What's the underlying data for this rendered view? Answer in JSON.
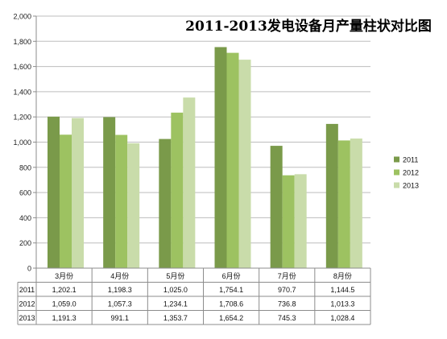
{
  "chart_data": {
    "type": "bar",
    "title": "2011-2013发电设备月产量柱状对比图",
    "categories": [
      "3月份",
      "4月份",
      "5月份",
      "6月份",
      "7月份",
      "8月份"
    ],
    "series": [
      {
        "name": "2011",
        "color": "#7a9a4a",
        "values": [
          1202.1,
          1198.3,
          1025.0,
          1754.1,
          970.7,
          1144.5
        ],
        "labels": [
          "1,202.1",
          "1,198.3",
          "1,025.0",
          "1,754.1",
          "970.7",
          "1,144.5"
        ]
      },
      {
        "name": "2012",
        "color": "#9dc261",
        "values": [
          1059.0,
          1057.3,
          1234.1,
          1708.6,
          736.8,
          1013.3
        ],
        "labels": [
          "1,059.0",
          "1,057.3",
          "1,234.1",
          "1,708.6",
          "736.8",
          "1,013.3"
        ]
      },
      {
        "name": "2013",
        "color": "#c9dcaa",
        "values": [
          1191.3,
          991.1,
          1353.7,
          1654.2,
          745.3,
          1028.4
        ],
        "labels": [
          "1,191.3",
          "991.1",
          "1,353.7",
          "1,654.2",
          "745.3",
          "1,028.4"
        ]
      }
    ],
    "ylim": [
      0,
      2000
    ],
    "yticks": [
      "0",
      "200",
      "400",
      "600",
      "800",
      "1,000",
      "1,200",
      "1,400",
      "1,600",
      "1,800",
      "2,000"
    ],
    "grid": true,
    "legend": "right",
    "data_table": true
  }
}
